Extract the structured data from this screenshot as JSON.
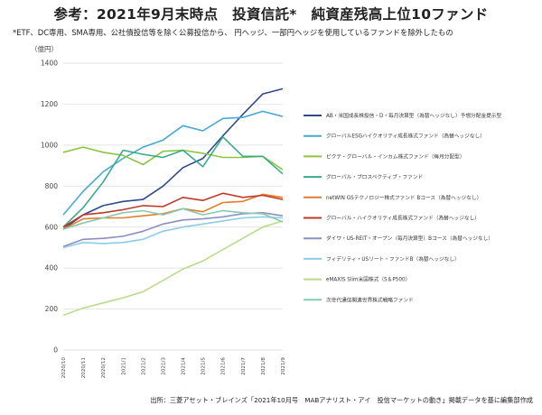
{
  "header": {
    "title": "参考：2021年9月末時点　投資信託*　純資産残高上位10ファンド",
    "subtitle": "*ETF、DC専用、SMA専用、公社債投信等を除く公募投信から、 円ヘッジ、一部円ヘッジを使用しているファンドを除外したもの"
  },
  "footer": {
    "source": "出所：三菱アセット・ブレインズ「2021年10月号　MABアナリスト・アイ　投信マーケットの動き」掲載データを基に編集部作成"
  },
  "chart_data": {
    "type": "line",
    "title": "参考：2021年9月末時点　投資信託*　純資産残高上位10ファンド",
    "ylabel": "（億円）",
    "xlabel": "",
    "ylim": [
      0,
      1400
    ],
    "yticks": [
      0,
      200,
      400,
      600,
      800,
      1000,
      1200,
      1400
    ],
    "grid": true,
    "legend_position": "right",
    "categories": [
      "2020/10",
      "2020/11",
      "2020/12",
      "2021/1",
      "2021/2",
      "2021/3",
      "2021/4",
      "2021/5",
      "2021/6",
      "2021/7",
      "2021/8",
      "2021/9"
    ],
    "series": [
      {
        "name": "AB・米国成長株投信・D・毎月決算型（為替ヘッジなし）予想分配金提示型",
        "color": "#2e4a8c",
        "values": [
          590,
          660,
          705,
          725,
          735,
          800,
          890,
          935,
          1045,
          1150,
          1250,
          1275
        ]
      },
      {
        "name": "グローバルESGハイクオリティ成長株式ファンド（為替ヘッジなし）",
        "color": "#47a9d4",
        "values": [
          660,
          775,
          870,
          935,
          990,
          1025,
          1095,
          1070,
          1130,
          1135,
          1165,
          1140
        ]
      },
      {
        "name": "ピクテ・グローバル・インカム株式ファンド（毎月分配型）",
        "color": "#8cc63f",
        "values": [
          965,
          990,
          965,
          950,
          905,
          970,
          975,
          960,
          940,
          940,
          945,
          880
        ]
      },
      {
        "name": "グローバル・プロスペクティブ・ファンド",
        "color": "#3aaa8d",
        "values": [
          600,
          695,
          820,
          975,
          955,
          940,
          975,
          895,
          1040,
          945,
          945,
          860
        ]
      },
      {
        "name": "netWIN GSテクノロジー株式ファンド Bコース（為替ヘッジなし）",
        "color": "#e37d2b",
        "values": [
          590,
          640,
          645,
          645,
          655,
          665,
          690,
          675,
          720,
          725,
          760,
          745
        ]
      },
      {
        "name": "グローバル・ハイクオリティ成長株式ファンド（為替ヘッジなし）",
        "color": "#c0392b",
        "values": [
          600,
          660,
          670,
          685,
          705,
          700,
          745,
          730,
          765,
          745,
          755,
          735
        ]
      },
      {
        "name": "ダイワ・US-REIT・オープン（毎月決算型）Bコース（為替ヘッジなし）",
        "color": "#8c8fc2",
        "values": [
          505,
          540,
          545,
          555,
          580,
          615,
          635,
          640,
          650,
          665,
          670,
          655
        ]
      },
      {
        "name": "フィデリティ・USリート・ファンドB（為替ヘッジなし）",
        "color": "#8ecbe8",
        "values": [
          500,
          525,
          520,
          525,
          540,
          580,
          600,
          615,
          630,
          645,
          650,
          645
        ]
      },
      {
        "name": "eMAXIS Slim米国株式（S＆P500）",
        "color": "#b8dd8a",
        "values": [
          170,
          205,
          230,
          255,
          285,
          340,
          395,
          435,
          490,
          545,
          600,
          630
        ]
      },
      {
        "name": "次世代通信関連世界株式戦略ファンド",
        "color": "#86c9b1",
        "values": [
          590,
          620,
          645,
          670,
          680,
          660,
          690,
          660,
          680,
          670,
          665,
          625
        ]
      }
    ]
  }
}
